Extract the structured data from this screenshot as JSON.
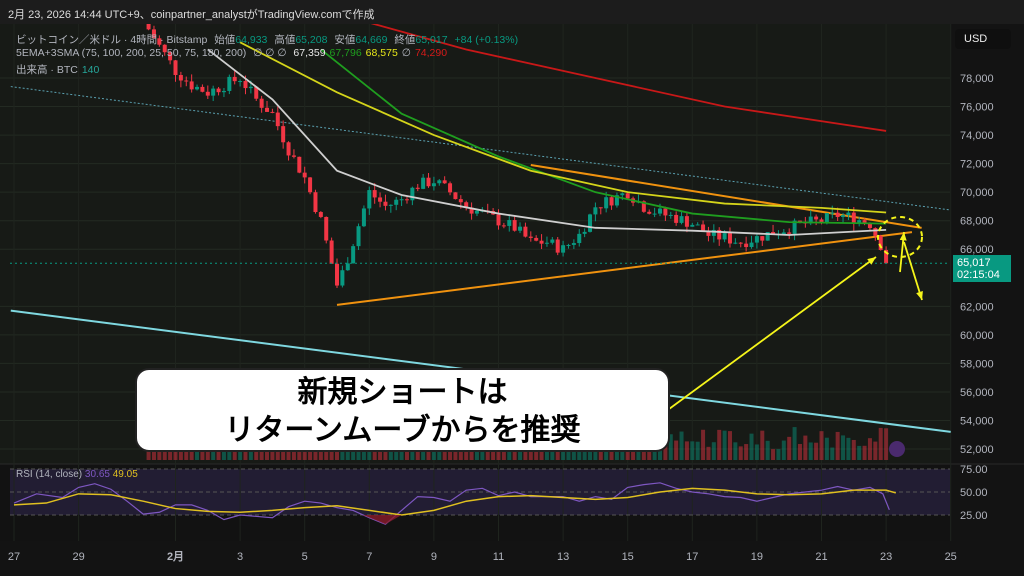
{
  "header": {
    "title": "2月 23, 2026 14:44 UTC+9、coinpartner_analystがTradingView.comで作成"
  },
  "legend": {
    "symbol": "ビットコイン／米ドル · 4時間 · Bitstamp",
    "open_label": "始値",
    "open": "64,933",
    "high_label": "高値",
    "high": "65,208",
    "low_label": "安値",
    "low": "64,669",
    "close_label": "終値",
    "close": "65,017",
    "change": "+84 (+0.13%)",
    "ma_label": "5EMA+3SMA (75, 100, 200, 25, 50, 75, 180, 200)",
    "ma_empty": "∅ ∅ ∅",
    "ma_values": [
      {
        "v": "67,359",
        "color": "#e8e8e8"
      },
      {
        "v": "67,796",
        "color": "#1f9e1f"
      },
      {
        "v": "68,575",
        "color": "#e5e51a"
      },
      {
        "v": "∅",
        "color": "#b2b5be"
      },
      {
        "v": "74,290",
        "color": "#d61a1a"
      }
    ],
    "volume_label": "出来高 · BTC",
    "volume": "140"
  },
  "currency_button": "USD",
  "price_tag": {
    "price": "65,017",
    "countdown": "02:15:04"
  },
  "callout": {
    "line1": "新規ショートは",
    "line2": "リターンムーブからを推奨"
  },
  "rsi": {
    "label": "RSI (14, close)",
    "value": "30.65",
    "ma": "49.05",
    "levels": [
      "75.00",
      "50.00",
      "25.00"
    ]
  },
  "colors": {
    "up": "#089981",
    "down": "#f23645",
    "orange": "#f0920f",
    "cyan": "#7fd8e0",
    "annotation": "#f5f51a",
    "rsi": "#7e57c2",
    "rsi_ma": "#e0c020"
  },
  "chart_data": {
    "type": "candlestick",
    "timeframe": "4h",
    "yaxis": {
      "range": [
        51500,
        80000
      ],
      "ticks": [
        "78,000",
        "76,000",
        "74,000",
        "72,000",
        "70,000",
        "68,000",
        "66,000",
        "62,000",
        "60,000",
        "58,000",
        "56,000",
        "54,000",
        "52,000"
      ]
    },
    "xaxis": {
      "ticks": [
        "27",
        "29",
        "2月",
        "3",
        "5",
        "7",
        "9",
        "11",
        "13",
        "15",
        "17",
        "19",
        "21",
        "23",
        "25"
      ],
      "tick_days": [
        0,
        2,
        5,
        7,
        9,
        11,
        13,
        15,
        17,
        19,
        21,
        23,
        25,
        27,
        29
      ]
    },
    "close_path": [
      [
        4,
        82000
      ],
      [
        5,
        78500
      ],
      [
        5.5,
        77500
      ],
      [
        6,
        77000
      ],
      [
        7,
        78000
      ],
      [
        7.5,
        76500
      ],
      [
        8,
        75500
      ],
      [
        8.5,
        73000
      ],
      [
        9,
        71000
      ],
      [
        9.5,
        68000
      ],
      [
        10,
        63500
      ],
      [
        10.2,
        64500
      ],
      [
        10.5,
        66500
      ],
      [
        11,
        70000
      ],
      [
        11.5,
        69000
      ],
      [
        12,
        69500
      ],
      [
        12.5,
        70500
      ],
      [
        13,
        70800
      ],
      [
        13.5,
        70000
      ],
      [
        14,
        69000
      ],
      [
        14.5,
        68500
      ],
      [
        15,
        68000
      ],
      [
        15.5,
        67500
      ],
      [
        16,
        66500
      ],
      [
        16.5,
        66500
      ],
      [
        17,
        66000
      ],
      [
        17.5,
        67000
      ],
      [
        18,
        69000
      ],
      [
        18.5,
        69500
      ],
      [
        19,
        70000
      ],
      [
        19.5,
        69000
      ],
      [
        20,
        68500
      ],
      [
        20.5,
        68200
      ],
      [
        21,
        67800
      ],
      [
        21.5,
        67000
      ],
      [
        22,
        66800
      ],
      [
        22.5,
        66500
      ],
      [
        23,
        66800
      ],
      [
        23.5,
        67200
      ],
      [
        24,
        67500
      ],
      [
        24.5,
        67800
      ],
      [
        25,
        68000
      ],
      [
        25.5,
        68400
      ],
      [
        26,
        68200
      ],
      [
        26.5,
        67800
      ],
      [
        26.8,
        66500
      ],
      [
        27.1,
        65017
      ]
    ],
    "moving_averages": [
      {
        "color": "#cfcfcf",
        "points": [
          [
            6,
            80000
          ],
          [
            8,
            76500
          ],
          [
            10,
            71500
          ],
          [
            12,
            69800
          ],
          [
            15,
            68500
          ],
          [
            18,
            67500
          ],
          [
            21,
            67300
          ],
          [
            24,
            67000
          ],
          [
            27,
            67359
          ]
        ]
      },
      {
        "color": "#1f9e1f",
        "points": [
          [
            9.5,
            80000
          ],
          [
            12,
            75500
          ],
          [
            15,
            72500
          ],
          [
            18,
            70000
          ],
          [
            21,
            68500
          ],
          [
            24,
            67900
          ],
          [
            27,
            67796
          ]
        ]
      },
      {
        "color": "#d4d41a",
        "points": [
          [
            7,
            80500
          ],
          [
            10,
            77000
          ],
          [
            13,
            74000
          ],
          [
            16,
            71500
          ],
          [
            19,
            70000
          ],
          [
            22,
            69200
          ],
          [
            25,
            68900
          ],
          [
            27,
            68575
          ]
        ]
      },
      {
        "color": "#c81818",
        "points": [
          [
            10,
            82500
          ],
          [
            14,
            80000
          ],
          [
            18,
            78000
          ],
          [
            22,
            76000
          ],
          [
            27,
            74290
          ]
        ]
      }
    ],
    "trendlines": [
      {
        "color": "#f0920f",
        "from": [
          10,
          62100
        ],
        "to": [
          27.8,
          67200
        ]
      },
      {
        "color": "#f0920f",
        "from": [
          16,
          71900
        ],
        "to": [
          28.1,
          67500
        ]
      },
      {
        "color": "#7fd8e0",
        "from": [
          -0.1,
          61700
        ],
        "to": [
          29,
          53200
        ]
      },
      {
        "color": "#5aa0b0",
        "dashed": true,
        "from": [
          -0.1,
          77400
        ],
        "to": [
          29,
          68750
        ]
      }
    ],
    "rsi_path": [
      [
        0,
        38
      ],
      [
        0.7,
        48
      ],
      [
        1.5,
        44
      ],
      [
        2,
        55
      ],
      [
        2.5,
        59
      ],
      [
        3,
        53
      ],
      [
        3.5,
        40
      ],
      [
        4,
        26
      ],
      [
        4.5,
        28
      ],
      [
        5,
        36
      ],
      [
        5.5,
        36
      ],
      [
        6,
        30
      ],
      [
        6.5,
        20
      ],
      [
        7,
        25
      ],
      [
        8,
        22
      ],
      [
        8.5,
        34
      ],
      [
        9,
        40
      ],
      [
        9.5,
        38
      ],
      [
        10,
        33
      ],
      [
        10.5,
        30
      ],
      [
        11,
        22
      ],
      [
        11.5,
        15
      ],
      [
        12,
        30
      ],
      [
        12.5,
        45
      ],
      [
        13,
        44
      ],
      [
        13.5,
        40
      ],
      [
        14,
        52
      ],
      [
        14.5,
        54
      ],
      [
        15,
        46
      ],
      [
        15.5,
        50
      ],
      [
        16,
        45
      ],
      [
        17,
        45
      ],
      [
        17.5,
        40
      ],
      [
        18,
        45
      ],
      [
        18.5,
        42
      ],
      [
        19,
        55
      ],
      [
        19.5,
        58
      ],
      [
        20,
        60
      ],
      [
        20.5,
        54
      ],
      [
        21,
        50
      ],
      [
        21.5,
        48
      ],
      [
        22,
        45
      ],
      [
        22.5,
        44
      ],
      [
        23,
        40
      ],
      [
        23.5,
        44
      ],
      [
        24,
        48
      ],
      [
        24.5,
        50
      ],
      [
        25,
        52
      ],
      [
        25.5,
        56
      ],
      [
        26,
        52
      ],
      [
        26.5,
        55
      ],
      [
        26.9,
        48
      ],
      [
        27.1,
        30.65
      ]
    ],
    "rsi_ma_path": [
      [
        0,
        36
      ],
      [
        1,
        38
      ],
      [
        2,
        48
      ],
      [
        3,
        47
      ],
      [
        4,
        40
      ],
      [
        5,
        32
      ],
      [
        6,
        29
      ],
      [
        7,
        28
      ],
      [
        8,
        30
      ],
      [
        9,
        33
      ],
      [
        10,
        35
      ],
      [
        11,
        30
      ],
      [
        12,
        25
      ],
      [
        13,
        30
      ],
      [
        14,
        40
      ],
      [
        15,
        45
      ],
      [
        16,
        46
      ],
      [
        17,
        44
      ],
      [
        18,
        42
      ],
      [
        19,
        44
      ],
      [
        20,
        50
      ],
      [
        21,
        54
      ],
      [
        22,
        52
      ],
      [
        23,
        48
      ],
      [
        24,
        47
      ],
      [
        25,
        48
      ],
      [
        26,
        52
      ],
      [
        27,
        52
      ],
      [
        27.3,
        49.05
      ]
    ]
  }
}
